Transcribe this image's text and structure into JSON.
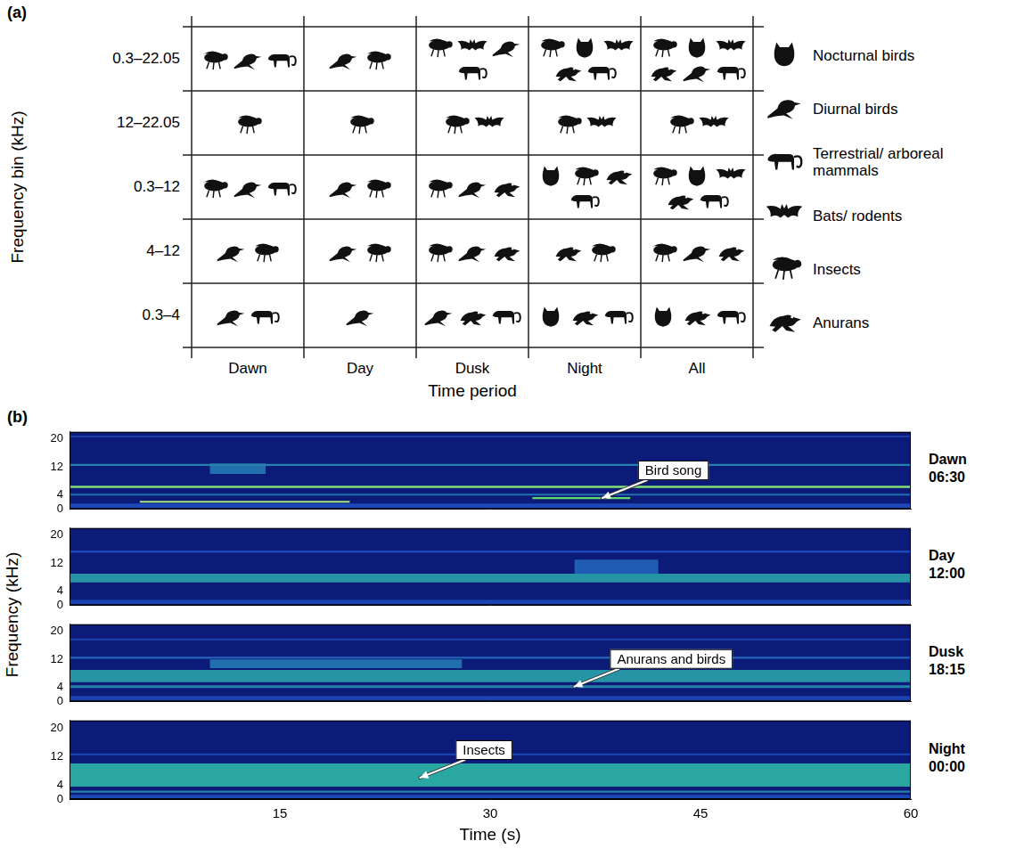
{
  "panel_a": {
    "label": "(a)",
    "y_title": "Frequency bin (kHz)",
    "x_title": "Time period",
    "columns": [
      "Dawn",
      "Day",
      "Dusk",
      "Night",
      "All"
    ],
    "legend": [
      "Nocturnal birds",
      "Diurnal birds",
      "Terrestrial/ arboreal mammals",
      "Bats/ rodents",
      "Insects",
      "Anurans"
    ],
    "rows": [
      {
        "label": "0.3–22.05",
        "cells": [
          [
            "Insects",
            "Diurnal birds",
            "Terrestrial/ arboreal mammals"
          ],
          [
            "Diurnal birds",
            "Insects"
          ],
          [
            "Insects",
            "Bats/ rodents",
            "Diurnal birds",
            "Terrestrial/ arboreal mammals"
          ],
          [
            "Insects",
            "Nocturnal birds",
            "Bats/ rodents",
            "Anurans",
            "Terrestrial/ arboreal mammals"
          ],
          [
            "Insects",
            "Nocturnal birds",
            "Bats/ rodents",
            "Anurans",
            "Diurnal birds",
            "Terrestrial/ arboreal mammals"
          ]
        ]
      },
      {
        "label": "12–22.05",
        "cells": [
          [
            "Insects"
          ],
          [
            "Insects"
          ],
          [
            "Insects",
            "Bats/ rodents"
          ],
          [
            "Insects",
            "Bats/ rodents"
          ],
          [
            "Insects",
            "Bats/ rodents"
          ]
        ]
      },
      {
        "label": "0.3–12",
        "cells": [
          [
            "Insects",
            "Diurnal birds",
            "Terrestrial/ arboreal mammals"
          ],
          [
            "Diurnal birds",
            "Insects"
          ],
          [
            "Insects",
            "Diurnal birds",
            "Anurans"
          ],
          [
            "Nocturnal birds",
            "Insects",
            "Anurans",
            "Terrestrial/ arboreal mammals"
          ],
          [
            "Insects",
            "Nocturnal birds",
            "Bats/ rodents",
            "Anurans",
            "Terrestrial/ arboreal mammals"
          ]
        ]
      },
      {
        "label": "4–12",
        "cells": [
          [
            "Diurnal birds",
            "Insects"
          ],
          [
            "Diurnal birds",
            "Insects"
          ],
          [
            "Insects",
            "Diurnal birds",
            "Anurans"
          ],
          [
            "Anurans",
            "Insects"
          ],
          [
            "Insects",
            "Diurnal birds",
            "Anurans"
          ]
        ]
      },
      {
        "label": "0.3–4",
        "cells": [
          [
            "Diurnal birds",
            "Terrestrial/ arboreal mammals"
          ],
          [
            "Diurnal birds"
          ],
          [
            "Diurnal birds",
            "Anurans",
            "Terrestrial/ arboreal mammals"
          ],
          [
            "Nocturnal birds",
            "Anurans",
            "Terrestrial/ arboreal mammals"
          ],
          [
            "Nocturnal birds",
            "Anurans",
            "Terrestrial/ arboreal mammals"
          ]
        ]
      }
    ]
  },
  "panel_b": {
    "label": "(b)",
    "y_title": "Frequency (kHz)",
    "x_title": "Time (s)"
  },
  "chart_data": [
    {
      "type": "spectrogram",
      "period": "Dawn",
      "time": "06:30",
      "xlim": [
        0,
        60
      ],
      "xticks": [
        15,
        30,
        45,
        60
      ],
      "ylim": [
        0,
        22.05
      ],
      "yticks": [
        0,
        4,
        12,
        20
      ],
      "grid": false,
      "tick_labels": "y",
      "bands": [
        {
          "t": [
            0,
            60
          ],
          "f": [
            0,
            1.5
          ],
          "level": 0.35
        },
        {
          "t": [
            0,
            60
          ],
          "f": [
            3.8,
            4.3
          ],
          "level": 0.45
        },
        {
          "t": [
            0,
            60
          ],
          "f": [
            6,
            6.6
          ],
          "level": 0.85
        },
        {
          "t": [
            0,
            60
          ],
          "f": [
            12.3,
            12.9
          ],
          "level": 0.5
        },
        {
          "t": [
            10,
            14
          ],
          "f": [
            10,
            13
          ],
          "level": 0.45
        },
        {
          "t": [
            0,
            60
          ],
          "f": [
            20.5,
            21
          ],
          "level": 0.3
        },
        {
          "t": [
            5,
            20
          ],
          "f": [
            1.8,
            2.3
          ],
          "level": 0.9
        },
        {
          "t": [
            33,
            40
          ],
          "f": [
            2.8,
            3.4
          ],
          "level": 0.8
        }
      ],
      "annotations": [
        {
          "text": "Bird song",
          "x": 38,
          "y": 3.1
        }
      ]
    },
    {
      "type": "spectrogram",
      "period": "Day",
      "time": "12:00",
      "xlim": [
        0,
        60
      ],
      "xticks": [
        15,
        30,
        45,
        60
      ],
      "ylim": [
        0,
        22.05
      ],
      "yticks": [
        0,
        4,
        12,
        20
      ],
      "grid": false,
      "tick_labels": "y",
      "bands": [
        {
          "t": [
            0,
            60
          ],
          "f": [
            0,
            1.5
          ],
          "level": 0.3
        },
        {
          "t": [
            0,
            60
          ],
          "f": [
            6.5,
            9
          ],
          "level": 0.55
        },
        {
          "t": [
            0,
            60
          ],
          "f": [
            7.2,
            8.4
          ],
          "level": 0.95
        },
        {
          "t": [
            0,
            60
          ],
          "f": [
            15,
            15.6
          ],
          "level": 0.35
        },
        {
          "t": [
            36,
            42
          ],
          "f": [
            9,
            13
          ],
          "level": 0.4
        }
      ],
      "annotations": []
    },
    {
      "type": "spectrogram",
      "period": "Dusk",
      "time": "18:15",
      "xlim": [
        0,
        60
      ],
      "xticks": [
        15,
        30,
        45,
        60
      ],
      "ylim": [
        0,
        22.05
      ],
      "yticks": [
        0,
        4,
        12,
        20
      ],
      "grid": false,
      "tick_labels": "y",
      "bands": [
        {
          "t": [
            0,
            60
          ],
          "f": [
            0,
            1.5
          ],
          "level": 0.3
        },
        {
          "t": [
            0,
            60
          ],
          "f": [
            3.8,
            4.6
          ],
          "level": 0.5
        },
        {
          "t": [
            0,
            60
          ],
          "f": [
            5.5,
            9
          ],
          "level": 0.55
        },
        {
          "t": [
            0,
            60
          ],
          "f": [
            6.3,
            8
          ],
          "level": 1.0
        },
        {
          "t": [
            10,
            28
          ],
          "f": [
            9.5,
            12
          ],
          "level": 0.45
        },
        {
          "t": [
            0,
            60
          ],
          "f": [
            12.2,
            12.8
          ],
          "level": 0.4
        },
        {
          "t": [
            0,
            60
          ],
          "f": [
            17.5,
            18
          ],
          "level": 0.3
        }
      ],
      "annotations": [
        {
          "text": "Anurans and birds",
          "x": 36,
          "y": 4.2
        }
      ]
    },
    {
      "type": "spectrogram",
      "period": "Night",
      "time": "00:00",
      "xlim": [
        0,
        60
      ],
      "xticks": [
        15,
        30,
        45,
        60
      ],
      "ylim": [
        0,
        22.05
      ],
      "yticks": [
        0,
        4,
        12,
        20
      ],
      "grid": false,
      "bands": [
        {
          "t": [
            0,
            60
          ],
          "f": [
            0,
            1.2
          ],
          "level": 0.35
        },
        {
          "t": [
            0,
            60
          ],
          "f": [
            1.8,
            2.4
          ],
          "level": 0.5
        },
        {
          "t": [
            0,
            60
          ],
          "f": [
            3.5,
            10
          ],
          "level": 0.6
        },
        {
          "t": [
            0,
            60
          ],
          "f": [
            4.5,
            8.5
          ],
          "level": 0.8
        },
        {
          "t": [
            0,
            60
          ],
          "f": [
            12.3,
            12.8
          ],
          "level": 0.35
        }
      ],
      "annotations": [
        {
          "text": "Insects",
          "x": 25,
          "y": 6
        }
      ]
    }
  ]
}
